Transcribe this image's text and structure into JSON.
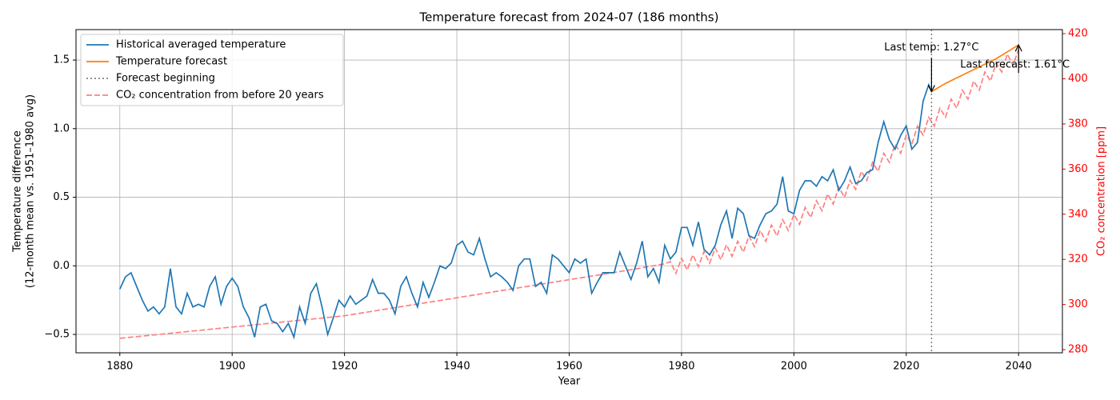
{
  "chart_data": {
    "type": "line",
    "title": "Temperature forecast from 2024-07 (186 months)",
    "xlabel": "Year",
    "ylabel": [
      "Temperature difference",
      "(12-month mean vs. 1951–1980 avg)"
    ],
    "y2label": "CO₂ concentration [ppm]",
    "y2color": "#ff0000",
    "xlim": [
      1872.2,
      2047.8
    ],
    "ylim": [
      -0.634,
      1.722
    ],
    "y2lim": [
      278.6,
      421.8
    ],
    "xticks": [
      1880,
      1900,
      1920,
      1940,
      1960,
      1980,
      2000,
      2020,
      2040
    ],
    "yticks": [
      {
        "value": -0.5,
        "label": "−0.5"
      },
      {
        "value": 0,
        "label": "0.0"
      },
      {
        "value": 0.5,
        "label": "0.5"
      },
      {
        "value": 1,
        "label": "1.0"
      },
      {
        "value": 1.5,
        "label": "1.5"
      }
    ],
    "y2ticks": [
      280,
      300,
      320,
      340,
      360,
      380,
      400,
      420
    ],
    "grid": true,
    "legend": "upper-left",
    "series": [
      {
        "name": "Historical averaged temperature",
        "color": "#1f77b4",
        "style": "solid",
        "x": [
          1880,
          1881,
          1882,
          1883,
          1884,
          1885,
          1886,
          1887,
          1888,
          1889,
          1890,
          1891,
          1892,
          1893,
          1894,
          1895,
          1896,
          1897,
          1898,
          1899,
          1900,
          1901,
          1902,
          1903,
          1904,
          1905,
          1906,
          1907,
          1908,
          1909,
          1910,
          1911,
          1912,
          1913,
          1914,
          1915,
          1916,
          1917,
          1918,
          1919,
          1920,
          1921,
          1922,
          1923,
          1924,
          1925,
          1926,
          1927,
          1928,
          1929,
          1930,
          1931,
          1932,
          1933,
          1934,
          1935,
          1936,
          1937,
          1938,
          1939,
          1940,
          1941,
          1942,
          1943,
          1944,
          1945,
          1946,
          1947,
          1948,
          1949,
          1950,
          1951,
          1952,
          1953,
          1954,
          1955,
          1956,
          1957,
          1958,
          1959,
          1960,
          1961,
          1962,
          1963,
          1964,
          1965,
          1966,
          1967,
          1968,
          1969,
          1970,
          1971,
          1972,
          1973,
          1974,
          1975,
          1976,
          1977,
          1978,
          1979,
          1980,
          1981,
          1982,
          1983,
          1984,
          1985,
          1986,
          1987,
          1988,
          1989,
          1990,
          1991,
          1992,
          1993,
          1994,
          1995,
          1996,
          1997,
          1998,
          1999,
          2000,
          2001,
          2002,
          2003,
          2004,
          2005,
          2006,
          2007,
          2008,
          2009,
          2010,
          2011,
          2012,
          2013,
          2014,
          2015,
          2016,
          2017,
          2018,
          2019,
          2020,
          2021,
          2022,
          2023,
          2024,
          2024.5
        ],
        "values": [
          -0.17,
          -0.08,
          -0.05,
          -0.15,
          -0.25,
          -0.33,
          -0.3,
          -0.35,
          -0.3,
          -0.02,
          -0.3,
          -0.35,
          -0.2,
          -0.3,
          -0.28,
          -0.3,
          -0.15,
          -0.08,
          -0.28,
          -0.15,
          -0.09,
          -0.15,
          -0.3,
          -0.38,
          -0.52,
          -0.3,
          -0.28,
          -0.4,
          -0.42,
          -0.48,
          -0.42,
          -0.52,
          -0.3,
          -0.42,
          -0.2,
          -0.13,
          -0.3,
          -0.5,
          -0.38,
          -0.25,
          -0.3,
          -0.22,
          -0.28,
          -0.25,
          -0.22,
          -0.1,
          -0.2,
          -0.2,
          -0.25,
          -0.35,
          -0.15,
          -0.08,
          -0.2,
          -0.3,
          -0.12,
          -0.23,
          -0.12,
          0.0,
          -0.02,
          0.02,
          0.15,
          0.18,
          0.1,
          0.08,
          0.2,
          0.05,
          -0.08,
          -0.05,
          -0.08,
          -0.12,
          -0.18,
          0.0,
          0.05,
          0.05,
          -0.15,
          -0.12,
          -0.2,
          0.08,
          0.05,
          0.0,
          -0.05,
          0.05,
          0.02,
          0.05,
          -0.2,
          -0.12,
          -0.05,
          -0.05,
          -0.05,
          0.1,
          0.0,
          -0.1,
          0.02,
          0.18,
          -0.08,
          -0.02,
          -0.12,
          0.15,
          0.05,
          0.1,
          0.28,
          0.28,
          0.15,
          0.32,
          0.12,
          0.08,
          0.15,
          0.3,
          0.4,
          0.2,
          0.42,
          0.38,
          0.22,
          0.2,
          0.3,
          0.38,
          0.4,
          0.45,
          0.65,
          0.4,
          0.38,
          0.55,
          0.62,
          0.62,
          0.58,
          0.65,
          0.62,
          0.7,
          0.55,
          0.62,
          0.72,
          0.6,
          0.62,
          0.68,
          0.7,
          0.9,
          1.05,
          0.92,
          0.85,
          0.95,
          1.02,
          0.85,
          0.9,
          1.2,
          1.32,
          1.27
        ]
      },
      {
        "name": "Temperature forecast",
        "color": "#ff7f0e",
        "style": "solid",
        "x": [
          2024.5,
          2027,
          2030,
          2033,
          2036,
          2038,
          2040
        ],
        "values": [
          1.27,
          1.33,
          1.39,
          1.45,
          1.51,
          1.56,
          1.61
        ]
      },
      {
        "name": "Forecast beginning",
        "color": "#808080",
        "style": "dotted",
        "vline": 2024.5
      },
      {
        "name": "CO₂ concentration from before 20 years",
        "color": "#ff8080",
        "style": "dashed",
        "axis": "y2",
        "x": [
          1880,
          1890,
          1900,
          1910,
          1920,
          1930,
          1940,
          1950,
          1960,
          1970,
          1977,
          1978,
          1979,
          1980,
          1981,
          1982,
          1983,
          1984,
          1985,
          1986,
          1987,
          1988,
          1989,
          1990,
          1991,
          1992,
          1993,
          1994,
          1995,
          1996,
          1997,
          1998,
          1999,
          2000,
          2001,
          2002,
          2003,
          2004,
          2005,
          2006,
          2007,
          2008,
          2009,
          2010,
          2011,
          2012,
          2013,
          2014,
          2015,
          2016,
          2017,
          2018,
          2019,
          2020,
          2021,
          2022,
          2023,
          2024,
          2025,
          2026,
          2027,
          2028,
          2029,
          2030,
          2031,
          2032,
          2033,
          2034,
          2035,
          2036,
          2037,
          2038,
          2039,
          2040
        ],
        "values": [
          285,
          287.5,
          290,
          292.5,
          295,
          299,
          303,
          307,
          311,
          315,
          318,
          319,
          313.8,
          320.5,
          315.3,
          322,
          316.8,
          323.5,
          318.3,
          325,
          319.8,
          326.5,
          321.3,
          328,
          323.2,
          330.4,
          325.6,
          332.8,
          328,
          335.2,
          330.4,
          337.6,
          332.8,
          340,
          335.5,
          343,
          338.5,
          346,
          341.5,
          349,
          344.5,
          352,
          347.5,
          355,
          351,
          359,
          355,
          363,
          359,
          367,
          363,
          371,
          367,
          375,
          371,
          379,
          375,
          383,
          379,
          387,
          383,
          391,
          387,
          395,
          391,
          399,
          395,
          403,
          399,
          407,
          403,
          411,
          406,
          413
        ]
      }
    ],
    "annotations": [
      {
        "text": "Last temp: 1.27°C",
        "x": 2024.5,
        "y": 1.27
      },
      {
        "text": "Last forecast: 1.61°C",
        "x": 2040,
        "y": 1.61
      }
    ]
  }
}
